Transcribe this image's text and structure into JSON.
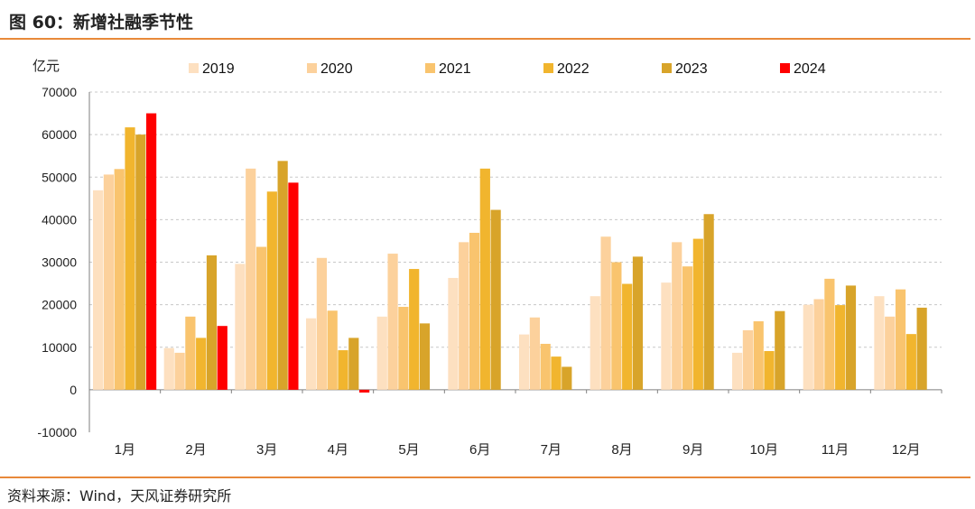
{
  "title": "图 60：新增社融季节性",
  "source": "资料来源：Wind，天风证券研究所",
  "chart_data": {
    "type": "bar",
    "ylabel": "亿元",
    "ylim": [
      -10000,
      70000
    ],
    "yticks": [
      -10000,
      0,
      10000,
      20000,
      30000,
      40000,
      50000,
      60000,
      70000
    ],
    "grid": true,
    "legend_position": "top",
    "categories": [
      "1月",
      "2月",
      "3月",
      "4月",
      "5月",
      "6月",
      "7月",
      "8月",
      "9月",
      "10月",
      "11月",
      "12月"
    ],
    "series": [
      {
        "name": "2019",
        "color": "#fde0c0",
        "values": [
          46900,
          9800,
          29600,
          16800,
          17200,
          26300,
          13000,
          22000,
          25200,
          8700,
          20000,
          22000
        ]
      },
      {
        "name": "2020",
        "color": "#fcd19c",
        "values": [
          50600,
          8700,
          52000,
          31000,
          32000,
          34700,
          17000,
          36000,
          34700,
          14000,
          21300,
          17200
        ]
      },
      {
        "name": "2021",
        "color": "#f9c46e",
        "values": [
          51900,
          17200,
          33600,
          18600,
          19500,
          36900,
          10800,
          30000,
          29000,
          16100,
          26100,
          23600
        ]
      },
      {
        "name": "2022",
        "color": "#f1b52e",
        "values": [
          61700,
          12200,
          46600,
          9300,
          28400,
          52000,
          7800,
          24900,
          35500,
          9100,
          19900,
          13100
        ]
      },
      {
        "name": "2023",
        "color": "#d8a42a",
        "values": [
          60000,
          31600,
          53800,
          12200,
          15600,
          42300,
          5400,
          31300,
          41300,
          18500,
          24500,
          19300
        ]
      },
      {
        "name": "2024",
        "color": "#ff0000",
        "values": [
          65000,
          15000,
          48700,
          -650,
          null,
          null,
          null,
          null,
          null,
          null,
          null,
          null
        ]
      }
    ]
  }
}
